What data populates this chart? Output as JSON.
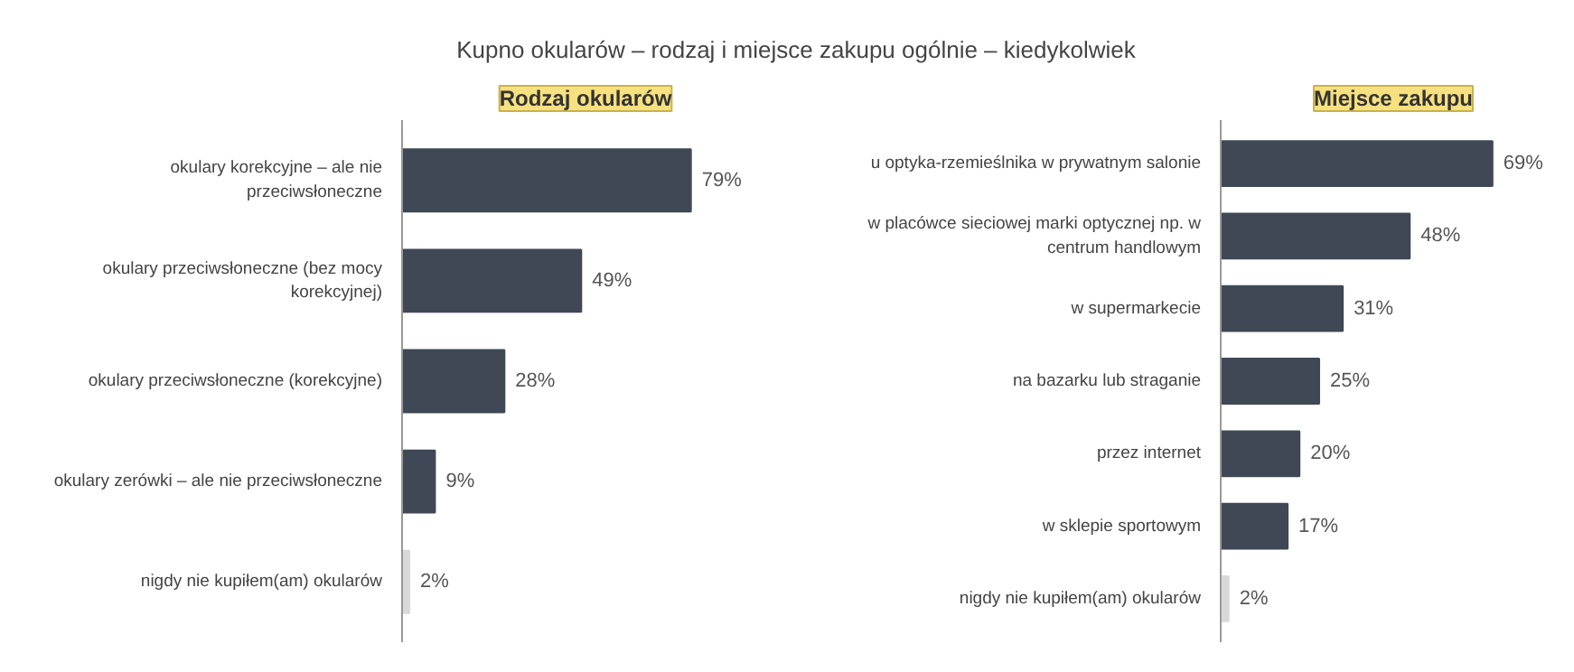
{
  "chart_data": [
    {
      "type": "bar",
      "orientation": "horizontal",
      "title": "Kupno okularów – rodzaj i miejsce zakupu ogólnie – kiedykolwiek",
      "subtitle": "Rodzaj okularów",
      "categories": [
        "okulary korekcyjne – ale nie\nprzeciwsłoneczne",
        "okulary przeciwsłoneczne (bez mocy\nkorekcyjnej)",
        "okulary przeciwsłoneczne (korekcyjne)",
        "okulary zerówki – ale nie przeciwsłoneczne",
        "nigdy nie kupiłem(am) okularów"
      ],
      "values": [
        79,
        49,
        28,
        9,
        2
      ],
      "colors": [
        "#3f4854",
        "#3f4854",
        "#3f4854",
        "#3f4854",
        "#d9d9d9"
      ],
      "value_labels": [
        "79%",
        "49%",
        "28%",
        "9%",
        "2%"
      ],
      "grid": false
    },
    {
      "type": "bar",
      "orientation": "horizontal",
      "subtitle": "Miejsce zakupu",
      "categories": [
        "u optyka-rzemieślnika w prywatnym salonie",
        "w placówce sieciowej marki optycznej np. w\ncentrum handlowym",
        "w supermarkecie",
        "na bazarku lub straganie",
        "przez internet",
        "w sklepie sportowym",
        "nigdy nie kupiłem(am) okularów"
      ],
      "values": [
        69,
        48,
        31,
        25,
        20,
        17,
        2
      ],
      "colors": [
        "#3f4854",
        "#3f4854",
        "#3f4854",
        "#3f4854",
        "#3f4854",
        "#3f4854",
        "#d9d9d9"
      ],
      "value_labels": [
        "69%",
        "48%",
        "31%",
        "25%",
        "20%",
        "17%",
        "2%"
      ],
      "grid": false
    }
  ]
}
